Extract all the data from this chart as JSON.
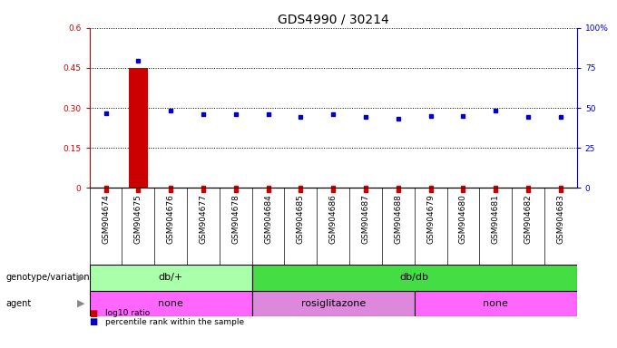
{
  "title": "GDS4990 / 30214",
  "samples": [
    "GSM904674",
    "GSM904675",
    "GSM904676",
    "GSM904677",
    "GSM904678",
    "GSM904684",
    "GSM904685",
    "GSM904686",
    "GSM904687",
    "GSM904688",
    "GSM904679",
    "GSM904680",
    "GSM904681",
    "GSM904682",
    "GSM904683"
  ],
  "log10_ratio": [
    0.0,
    0.45,
    0.0,
    0.0,
    0.0,
    0.0,
    0.0,
    0.0,
    0.0,
    0.0,
    0.0,
    0.0,
    0.0,
    0.0,
    0.0
  ],
  "percentile_rank": [
    46.7,
    79.2,
    48.3,
    45.8,
    45.8,
    45.8,
    44.2,
    45.8,
    44.2,
    43.3,
    45.0,
    45.0,
    48.3,
    44.2,
    44.2
  ],
  "ylim_left": [
    0,
    0.6
  ],
  "ylim_right": [
    0,
    100
  ],
  "yticks_left": [
    0,
    0.15,
    0.3,
    0.45,
    0.6
  ],
  "yticks_right": [
    0,
    25,
    50,
    75,
    100
  ],
  "ytick_labels_left": [
    "0",
    "0.15",
    "0.30",
    "0.45",
    "0.6"
  ],
  "ytick_labels_right": [
    "0",
    "25",
    "50",
    "75",
    "100%"
  ],
  "genotype_groups": [
    {
      "label": "db/+",
      "start": 0,
      "end": 5,
      "color": "#AAFFAA"
    },
    {
      "label": "db/db",
      "start": 5,
      "end": 15,
      "color": "#44DD44"
    }
  ],
  "agent_groups": [
    {
      "label": "none",
      "start": 0,
      "end": 5,
      "color": "#FF66FF"
    },
    {
      "label": "rosiglitazone",
      "start": 5,
      "end": 10,
      "color": "#DD88DD"
    },
    {
      "label": "none",
      "start": 10,
      "end": 15,
      "color": "#FF66FF"
    }
  ],
  "bar_color": "#CC0000",
  "dot_color": "#0000CC",
  "grid_color": "#000000",
  "background_color": "#ffffff",
  "xticklabel_bg": "#DDDDDD",
  "left_axis_color": "#CC0000",
  "right_axis_color": "#0000CC",
  "title_fontsize": 10,
  "tick_fontsize": 6.5,
  "label_fontsize": 8,
  "row_label_fontsize": 7
}
